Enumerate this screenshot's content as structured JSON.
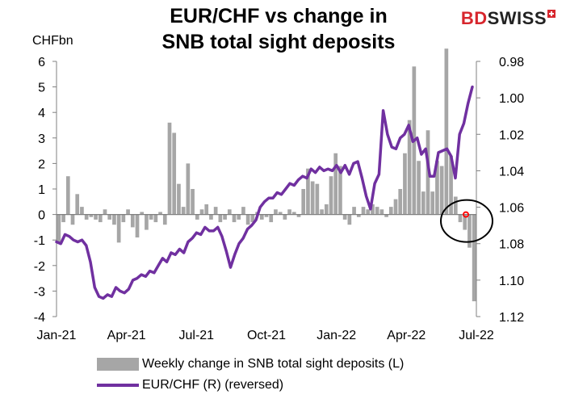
{
  "header": {
    "title_line1": "EUR/CHF vs change in",
    "title_line2": "SNB total sight deposits",
    "logo_bd": "BD",
    "logo_swiss": "SWISS"
  },
  "chart_data": {
    "type": "bar+line",
    "left_unit": "CHFbn",
    "x_tick_labels": [
      "Jan-21",
      "Apr-21",
      "Jul-21",
      "Oct-21",
      "Jan-22",
      "Apr-22",
      "Jul-22"
    ],
    "left_axis": {
      "min": -4,
      "max": 6,
      "ticks": [
        6,
        5,
        4,
        3,
        2,
        1,
        0,
        -1,
        -2,
        -3,
        -4
      ]
    },
    "right_axis": {
      "min": 0.98,
      "max": 1.12,
      "reversed": true,
      "tick_labels": [
        "0.98",
        "1.00",
        "1.02",
        "1.04",
        "1.06",
        "1.08",
        "1.10",
        "1.12"
      ]
    },
    "grid": false,
    "legend_position": "bottom",
    "series": [
      {
        "name": "Weekly change in SNB total sight deposits (L)",
        "type": "bar",
        "axis": "left",
        "color": "#a6a6a6",
        "values": [
          -1.1,
          -0.3,
          1.5,
          -0.4,
          0.8,
          0.3,
          -0.2,
          -0.1,
          -0.2,
          -0.3,
          0.2,
          -0.2,
          -0.4,
          -1.1,
          -0.3,
          0.2,
          -0.5,
          -0.9,
          0.1,
          -0.6,
          -0.2,
          -0.3,
          0.1,
          -0.4,
          3.6,
          3.2,
          1.2,
          0.3,
          2.0,
          1.0,
          -0.2,
          0.2,
          0.4,
          -0.2,
          0.3,
          -0.3,
          -0.2,
          0.2,
          -0.3,
          -0.2,
          0.3,
          -0.4,
          -0.3,
          0.1,
          -0.2,
          -0.1,
          -0.3,
          0.2,
          0.1,
          -0.2,
          0.2,
          0.1,
          -0.1,
          1.0,
          1.8,
          1.3,
          1.2,
          0.2,
          0.4,
          1.5,
          2.4,
          1.9,
          -0.2,
          -0.4,
          0.3,
          -0.1,
          0.3,
          0.2,
          0.4,
          0.3,
          0.2,
          -0.1,
          0.3,
          0.6,
          1.0,
          2.4,
          3.7,
          5.8,
          2.1,
          0.9,
          3.3,
          0.9,
          2.1,
          1.9,
          6.5,
          2.3,
          0.7,
          -0.3,
          -0.6,
          -1.3,
          -3.4
        ]
      },
      {
        "name": "EUR/CHF (R) (reversed)",
        "type": "line",
        "axis": "right",
        "color": "#7030a0",
        "values": [
          1.079,
          1.08,
          1.075,
          1.076,
          1.078,
          1.079,
          1.078,
          1.081,
          1.09,
          1.104,
          1.109,
          1.11,
          1.108,
          1.109,
          1.104,
          1.106,
          1.107,
          1.105,
          1.1,
          1.099,
          1.097,
          1.098,
          1.095,
          1.096,
          1.092,
          1.088,
          1.09,
          1.085,
          1.086,
          1.083,
          1.085,
          1.079,
          1.077,
          1.074,
          1.075,
          1.071,
          1.073,
          1.073,
          1.071,
          1.076,
          1.084,
          1.093,
          1.086,
          1.08,
          1.077,
          1.072,
          1.07,
          1.067,
          1.06,
          1.057,
          1.055,
          1.055,
          1.052,
          1.053,
          1.05,
          1.047,
          1.048,
          1.045,
          1.043,
          1.044,
          1.039,
          1.041,
          1.038,
          1.04,
          1.039,
          1.04,
          1.037,
          1.041,
          1.037,
          1.042,
          1.036,
          1.035,
          1.044,
          1.054,
          1.061,
          1.047,
          1.042,
          1.007,
          1.02,
          1.027,
          1.028,
          1.022,
          1.02,
          1.015,
          1.024,
          1.022,
          1.031,
          1.028,
          1.043,
          1.043,
          1.03,
          1.029,
          1.028,
          1.032,
          1.044,
          1.02,
          1.014,
          1.003,
          0.994
        ]
      }
    ],
    "annotation": {
      "shape": "circle",
      "color": "#000000",
      "marker_color": "#ff0000"
    }
  }
}
